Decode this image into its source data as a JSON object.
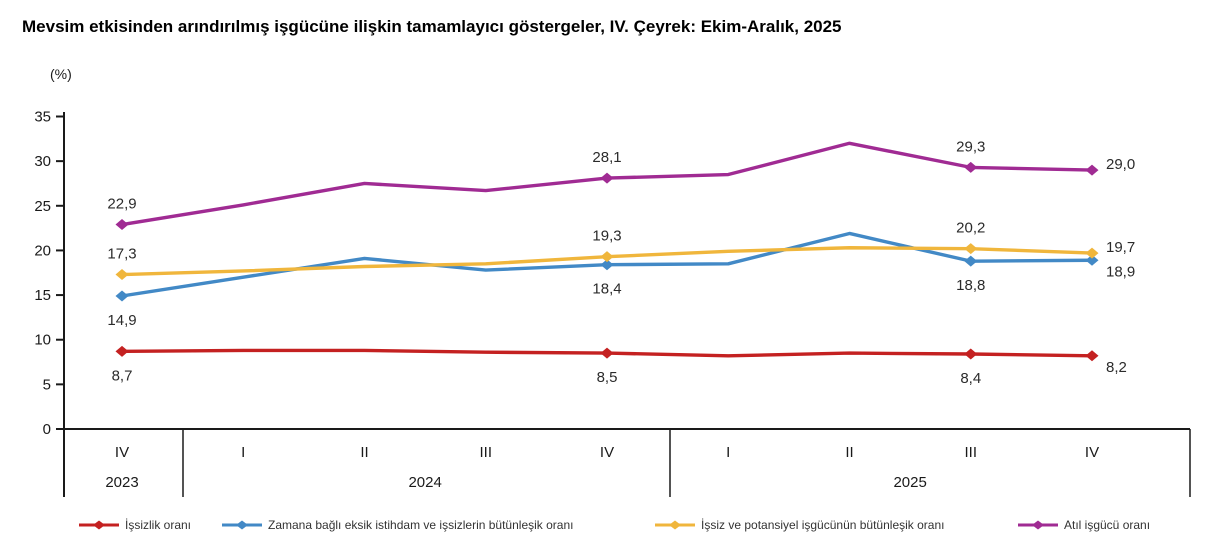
{
  "chart_data": {
    "type": "line",
    "title": "Mevsim etkisinden arındırılmış işgücüne ilişkin tamamlayıcı göstergeler, IV. Çeyrek: Ekim-Aralık, 2025",
    "unit_label": "(%)",
    "ylim": [
      0,
      35
    ],
    "yticks": [
      35,
      30,
      25,
      20,
      15,
      10,
      5,
      0
    ],
    "grid": false,
    "legend_position": "bottom",
    "x_categories": [
      "IV",
      "I",
      "II",
      "III",
      "IV",
      "I",
      "II",
      "III",
      "IV"
    ],
    "year_groups": [
      {
        "label": "2023",
        "from": 0,
        "to": 0
      },
      {
        "label": "2024",
        "from": 1,
        "to": 4
      },
      {
        "label": "2025",
        "from": 5,
        "to": 8
      }
    ],
    "series": [
      {
        "name": "İşsizlik oranı",
        "color": "#c42121",
        "label_side": "below",
        "values": [
          8.7,
          8.8,
          8.8,
          8.6,
          8.5,
          8.2,
          8.5,
          8.4,
          8.2
        ],
        "point_labels": {
          "0": "8,7",
          "4": "8,5",
          "7": "8,4",
          "8": "8,2"
        }
      },
      {
        "name": "Zamana bağlı eksik istihdam ve işsizlerin bütünleşik oranı",
        "color": "#4289c6",
        "label_side": "below",
        "values": [
          14.9,
          17.0,
          19.1,
          17.8,
          18.4,
          18.5,
          21.9,
          18.8,
          18.9
        ],
        "point_labels": {
          "0": "14,9",
          "4": "18,4",
          "7": "18,8",
          "8": "18,9"
        }
      },
      {
        "name": "İşsiz ve potansiyel işgücünün bütünleşik oranı",
        "color": "#f0b63c",
        "label_side": "above",
        "values": [
          17.3,
          17.7,
          18.2,
          18.5,
          19.3,
          19.9,
          20.3,
          20.2,
          19.7
        ],
        "point_labels": {
          "0": "17,3",
          "4": "19,3",
          "7": "20,2",
          "8": "19,7"
        }
      },
      {
        "name": "Atıl işgücü oranı",
        "color": "#a02b93",
        "label_side": "above",
        "values": [
          22.9,
          25.1,
          27.5,
          26.7,
          28.1,
          28.5,
          32.0,
          29.3,
          29.0
        ],
        "point_labels": {
          "0": "22,9",
          "4": "28,1",
          "7": "29,3",
          "8": "29,0"
        }
      }
    ]
  }
}
